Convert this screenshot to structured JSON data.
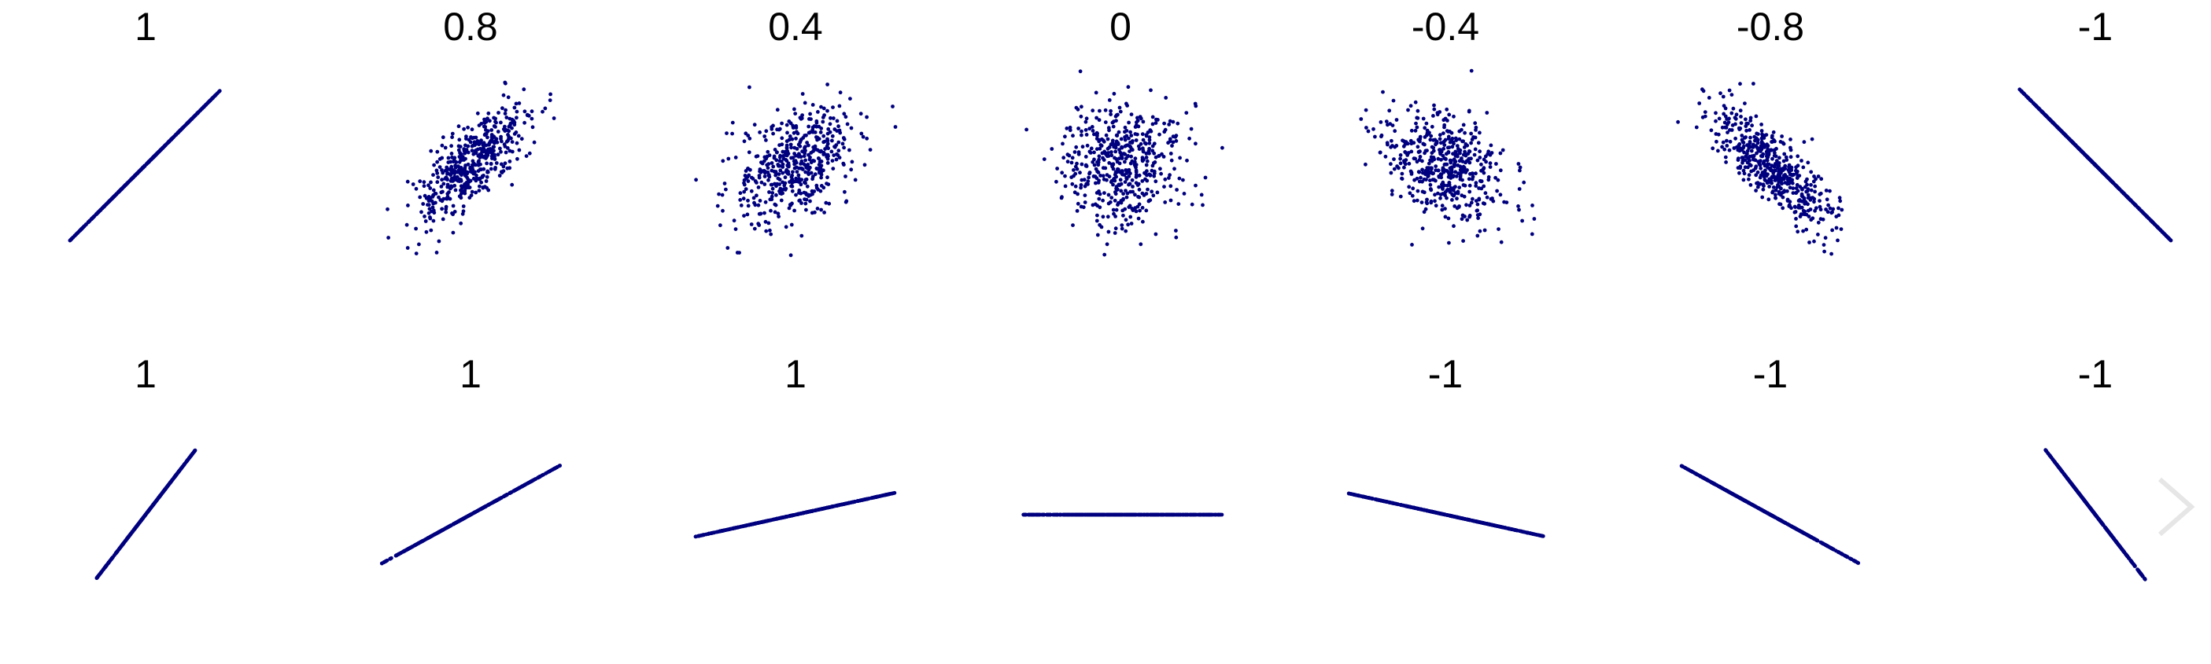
{
  "colors": {
    "points": "#00007f",
    "text": "#000000",
    "arrow": "#e6e6e6"
  },
  "icons": {
    "next": "chevron-right-icon"
  },
  "chart_data": [
    {
      "type": "scatter",
      "title": "1",
      "pattern": "linear",
      "correlation": 1,
      "slope": 1,
      "spread": 1
    },
    {
      "type": "scatter",
      "title": "0.8",
      "pattern": "cloud",
      "correlation": 0.8,
      "spread": 1
    },
    {
      "type": "scatter",
      "title": "0.4",
      "pattern": "cloud",
      "correlation": 0.4,
      "spread": 1
    },
    {
      "type": "scatter",
      "title": "0",
      "pattern": "cloud",
      "correlation": 0,
      "spread": 1
    },
    {
      "type": "scatter",
      "title": "-0.4",
      "pattern": "cloud",
      "correlation": -0.4,
      "spread": 1
    },
    {
      "type": "scatter",
      "title": "-0.8",
      "pattern": "cloud",
      "correlation": -0.8,
      "spread": 1
    },
    {
      "type": "scatter",
      "title": "-1",
      "pattern": "linear",
      "correlation": -1,
      "slope": -1,
      "spread": 1
    },
    {
      "type": "scatter",
      "title": "1",
      "pattern": "linear",
      "correlation": 1,
      "slope": 1.3,
      "spread": 0.8
    },
    {
      "type": "scatter",
      "title": "1",
      "pattern": "linear",
      "correlation": 1,
      "slope": 0.55,
      "spread": 1
    },
    {
      "type": "scatter",
      "title": "1",
      "pattern": "linear",
      "correlation": 1,
      "slope": 0.22,
      "spread": 1
    },
    {
      "type": "scatter",
      "title": "",
      "pattern": "linear",
      "correlation": null,
      "slope": 0,
      "spread": 1
    },
    {
      "type": "scatter",
      "title": "-1",
      "pattern": "linear",
      "correlation": -1,
      "slope": -0.22,
      "spread": 1
    },
    {
      "type": "scatter",
      "title": "-1",
      "pattern": "linear",
      "correlation": -1,
      "slope": -0.55,
      "spread": 1
    },
    {
      "type": "scatter",
      "title": "-1",
      "pattern": "linear",
      "correlation": -1,
      "slope": -1.3,
      "spread": 0.8
    }
  ]
}
